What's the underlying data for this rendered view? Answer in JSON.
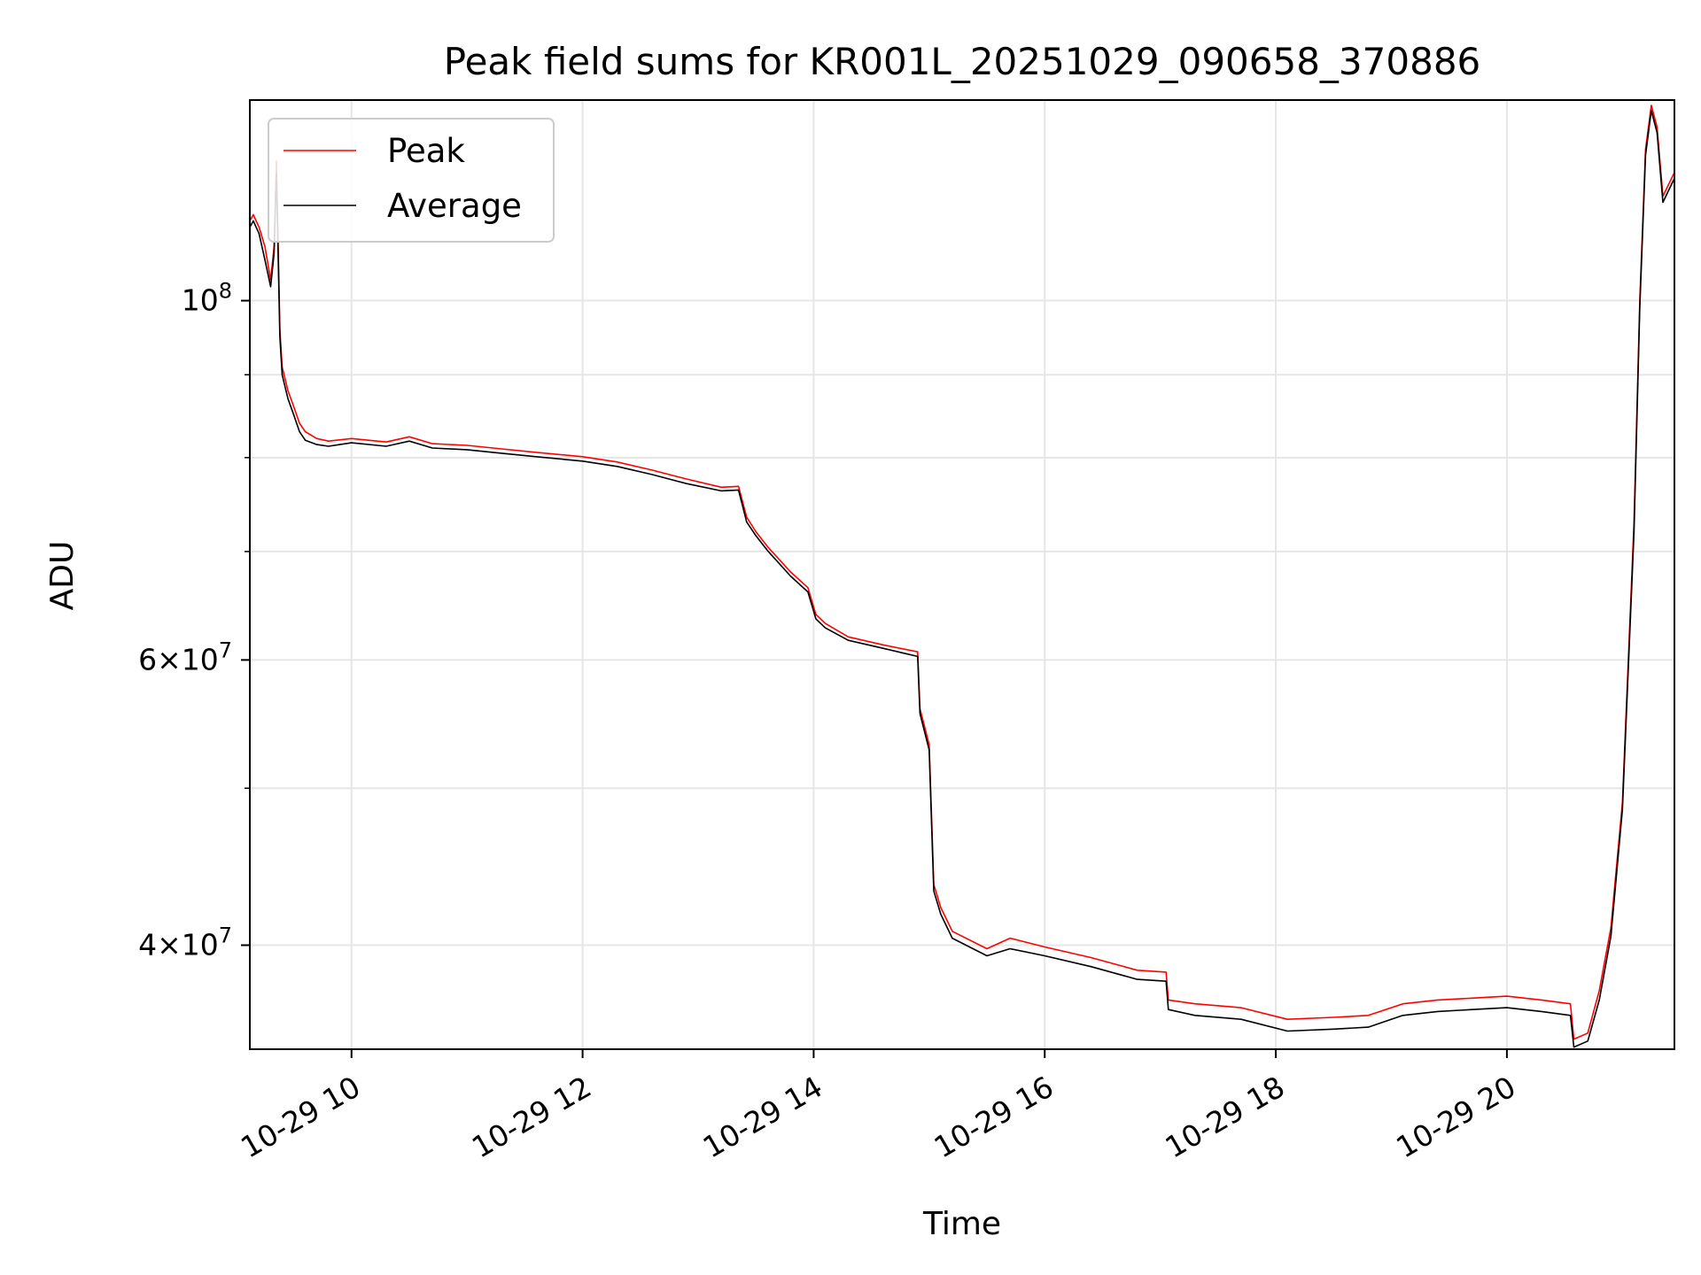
{
  "chart_data": {
    "type": "line",
    "title": "Peak field sums for KR001L_20251029_090658_370886",
    "xlabel": "Time",
    "ylabel": "ADU",
    "yscale": "log",
    "ylim": [
      34500000,
      133000000
    ],
    "xlim_hours": [
      9.12,
      21.45
    ],
    "grid": true,
    "legend_location": "upper left",
    "x_ticks": [
      {
        "hour": 10,
        "label": "10-29 10"
      },
      {
        "hour": 12,
        "label": "10-29 12"
      },
      {
        "hour": 14,
        "label": "10-29 14"
      },
      {
        "hour": 16,
        "label": "10-29 16"
      },
      {
        "hour": 18,
        "label": "10-29 18"
      },
      {
        "hour": 20,
        "label": "10-29 20"
      }
    ],
    "y_major_ticks": [
      {
        "value": 100000000,
        "base": "10",
        "exp": "8"
      },
      {
        "value": 60000000,
        "base": "6×10",
        "exp": "7"
      },
      {
        "value": 40000000,
        "base": "4×10",
        "exp": "7"
      }
    ],
    "y_minor_ticks": [
      90000000,
      80000000,
      70000000,
      50000000
    ],
    "series": [
      {
        "name": "Peak",
        "color": "#ff0000",
        "x": [
          9.12,
          9.15,
          9.2,
          9.25,
          9.3,
          9.33,
          9.35,
          9.38,
          9.4,
          9.45,
          9.5,
          9.55,
          9.6,
          9.7,
          9.8,
          10.0,
          10.3,
          10.5,
          10.7,
          11.0,
          11.3,
          11.6,
          12.0,
          12.3,
          12.6,
          12.9,
          13.2,
          13.35,
          13.42,
          13.5,
          13.6,
          13.8,
          13.95,
          14.02,
          14.1,
          14.3,
          14.6,
          14.9,
          14.92,
          15.0,
          15.04,
          15.1,
          15.2,
          15.5,
          15.7,
          16.0,
          16.4,
          16.8,
          17.05,
          17.07,
          17.3,
          17.7,
          18.1,
          18.5,
          18.8,
          19.1,
          19.4,
          19.7,
          20.0,
          20.3,
          20.55,
          20.58,
          20.7,
          20.8,
          20.9,
          21.0,
          21.1,
          21.15,
          21.2,
          21.25,
          21.3,
          21.35,
          21.45
        ],
        "y": [
          112000000,
          113000000,
          111000000,
          108000000,
          103000000,
          108000000,
          122000000,
          96000000,
          91000000,
          88000000,
          86000000,
          84000000,
          83000000,
          82200000,
          81900000,
          82200000,
          81800000,
          82400000,
          81600000,
          81400000,
          81000000,
          80600000,
          80100000,
          79500000,
          78600000,
          77600000,
          76700000,
          76800000,
          73500000,
          72000000,
          70500000,
          68000000,
          66500000,
          64000000,
          63200000,
          62000000,
          61300000,
          60700000,
          56000000,
          53200000,
          43600000,
          42200000,
          40800000,
          39800000,
          40400000,
          39900000,
          39300000,
          38600000,
          38500000,
          37000000,
          36800000,
          36600000,
          36000000,
          36100000,
          36200000,
          36800000,
          37000000,
          37100000,
          37200000,
          37000000,
          36800000,
          35000000,
          35300000,
          37500000,
          41000000,
          49000000,
          73000000,
          100000000,
          124000000,
          132000000,
          128000000,
          116000000,
          120000000
        ]
      },
      {
        "name": "Average",
        "color": "#000000",
        "x": [
          9.12,
          9.15,
          9.2,
          9.25,
          9.3,
          9.33,
          9.35,
          9.38,
          9.4,
          9.45,
          9.5,
          9.55,
          9.6,
          9.7,
          9.8,
          10.0,
          10.3,
          10.5,
          10.7,
          11.0,
          11.3,
          11.6,
          12.0,
          12.3,
          12.6,
          12.9,
          13.2,
          13.35,
          13.42,
          13.5,
          13.6,
          13.8,
          13.95,
          14.02,
          14.1,
          14.3,
          14.6,
          14.9,
          14.92,
          15.0,
          15.04,
          15.1,
          15.2,
          15.5,
          15.7,
          16.0,
          16.4,
          16.8,
          17.05,
          17.07,
          17.3,
          17.7,
          18.1,
          18.5,
          18.8,
          19.1,
          19.4,
          19.7,
          20.0,
          20.3,
          20.55,
          20.58,
          20.7,
          20.8,
          20.9,
          21.0,
          21.1,
          21.15,
          21.2,
          21.25,
          21.3,
          21.35,
          21.45
        ],
        "y": [
          111000000,
          112000000,
          110000000,
          106000000,
          102000000,
          107000000,
          120000000,
          95000000,
          90000000,
          87000000,
          85000000,
          83000000,
          82000000,
          81500000,
          81300000,
          81700000,
          81300000,
          81900000,
          81100000,
          80900000,
          80500000,
          80100000,
          79600000,
          79000000,
          78100000,
          77100000,
          76300000,
          76400000,
          73000000,
          71600000,
          70100000,
          67600000,
          66100000,
          63600000,
          62800000,
          61700000,
          61000000,
          60300000,
          55600000,
          52800000,
          43200000,
          41800000,
          40400000,
          39400000,
          39800000,
          39400000,
          38800000,
          38100000,
          38000000,
          36500000,
          36200000,
          36000000,
          35400000,
          35500000,
          35600000,
          36200000,
          36400000,
          36500000,
          36600000,
          36400000,
          36200000,
          34600000,
          34900000,
          37000000,
          40500000,
          48500000,
          72000000,
          99000000,
          123000000,
          131000000,
          127000000,
          115000000,
          119000000
        ]
      }
    ]
  }
}
